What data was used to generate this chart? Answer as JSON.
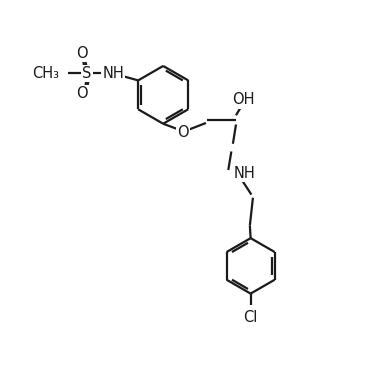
{
  "bg_color": "#ffffff",
  "line_color": "#1a1a1a",
  "bond_lw": 1.6,
  "font_size": 10.5,
  "figsize": [
    3.88,
    3.9
  ],
  "dpi": 100,
  "xlim": [
    0,
    10
  ],
  "ylim": [
    0,
    10
  ]
}
